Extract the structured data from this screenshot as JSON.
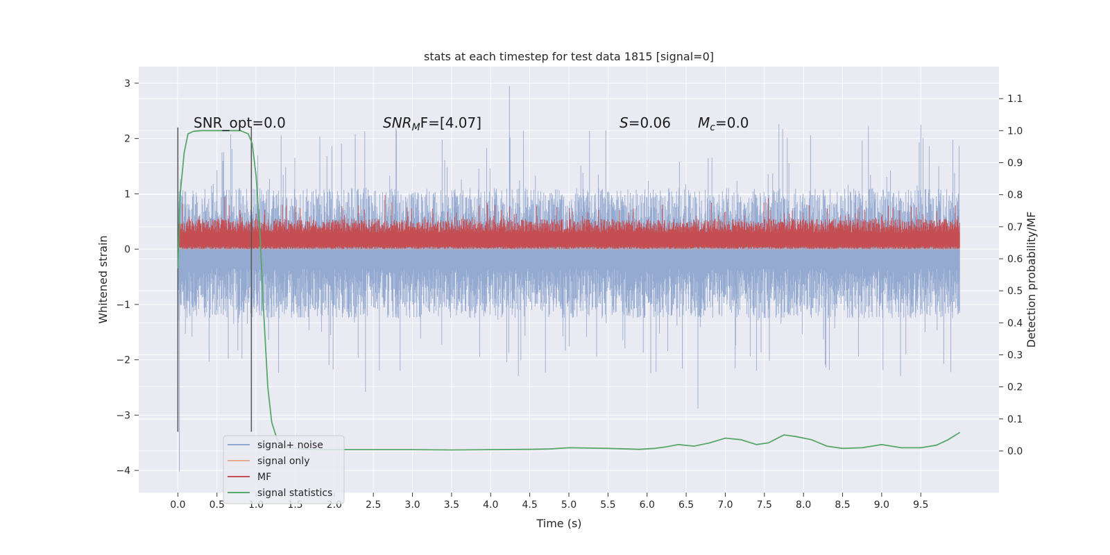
{
  "chart_data": {
    "type": "line",
    "title": "stats at each timestep for test data 1815 [signal=0]",
    "xlabel": "Time (s)",
    "ylabel": "Whitened strain",
    "ylabel_right": "Detection probability/MF",
    "xlim": [
      -0.5,
      10.5
    ],
    "ylim": [
      -4.4,
      3.3
    ],
    "ylim_right": [
      -0.13,
      1.2
    ],
    "x_ticks": [
      0.0,
      0.5,
      1.0,
      1.5,
      2.0,
      2.5,
      3.0,
      3.5,
      4.0,
      4.5,
      5.0,
      5.5,
      6.0,
      6.5,
      7.0,
      7.5,
      8.0,
      8.5,
      9.0,
      9.5
    ],
    "x_tick_labels": [
      "0.0",
      "0.5",
      "1.0",
      "1.5",
      "2.0",
      "2.5",
      "3.0",
      "3.5",
      "4.0",
      "4.5",
      "5.0",
      "5.5",
      "6.0",
      "6.5",
      "7.0",
      "7.5",
      "8.0",
      "8.5",
      "9.0",
      "9.5"
    ],
    "y_ticks": [
      3,
      2,
      1,
      0,
      -1,
      -2,
      -3,
      -4
    ],
    "y_tick_labels": [
      "3",
      "2",
      "1",
      "0",
      "−1",
      "−2",
      "−3",
      "−4"
    ],
    "y_right_ticks": [
      1.1,
      1.0,
      0.9,
      0.8,
      0.7,
      0.6,
      0.5,
      0.4,
      0.3,
      0.2,
      0.1,
      0.0
    ],
    "y_right_tick_labels": [
      "1.1",
      "1.0",
      "0.9",
      "0.8",
      "0.7",
      "0.6",
      "0.5",
      "0.4",
      "0.3",
      "0.2",
      "0.1",
      "0.0"
    ],
    "grid": true,
    "legend_position": "lower-left",
    "annotations": {
      "snr_opt": "SNR_opt=0.0",
      "snr_mf_prefix": "SNR",
      "snr_mf_sub": "M",
      "snr_mf_suffix": "F=[4.07]",
      "s_prefix": "S",
      "s_suffix": "=0.06",
      "mc_prefix": "M",
      "mc_sub": "c",
      "mc_suffix": "=0.0"
    },
    "vlines_x": [
      0.0,
      0.94
    ],
    "series": [
      {
        "name": "signal+ noise",
        "color": "#8fa6cf",
        "style": "dense-noise",
        "x_range": [
          0.0,
          10.0
        ],
        "typical_range": [
          -1.25,
          1.1
        ],
        "peak_examples": [
          {
            "x": 0.02,
            "y": -4.02
          },
          {
            "x": 4.24,
            "y": 2.95
          },
          {
            "x": 9.5,
            "y": 2.25
          },
          {
            "x": 6.65,
            "y": -2.88
          },
          {
            "x": 2.4,
            "y": -2.58
          }
        ]
      },
      {
        "name": "signal only",
        "color": "#e8a98c",
        "values_constant": 0.0
      },
      {
        "name": "MF",
        "color": "#c44e52",
        "style": "dense-noise",
        "x_range": [
          0.0,
          10.0
        ],
        "typical_range": [
          0.0,
          0.55
        ],
        "peak_examples": [
          {
            "x": 2.65,
            "y": 0.98
          },
          {
            "x": 0.6,
            "y": 0.95
          },
          {
            "x": 7.55,
            "y": 0.92
          }
        ]
      },
      {
        "name": "signal statistics",
        "color": "#55a868",
        "axis": "right",
        "x": [
          0.0,
          0.03,
          0.08,
          0.13,
          0.2,
          0.3,
          0.4,
          0.5,
          0.6,
          0.7,
          0.8,
          0.9,
          0.95,
          1.0,
          1.05,
          1.1,
          1.15,
          1.2,
          1.27,
          1.35,
          1.45,
          1.6,
          1.8,
          2.0,
          2.5,
          3.0,
          3.5,
          4.0,
          4.5,
          4.75,
          5.0,
          5.5,
          5.9,
          6.1,
          6.25,
          6.4,
          6.6,
          6.8,
          7.0,
          7.2,
          7.4,
          7.55,
          7.75,
          7.9,
          8.1,
          8.3,
          8.5,
          8.75,
          9.0,
          9.25,
          9.5,
          9.7,
          9.85,
          10.0
        ],
        "y": [
          0.57,
          0.8,
          0.93,
          0.99,
          0.998,
          1.0,
          1.0,
          1.0,
          1.0,
          1.0,
          1.0,
          0.99,
          0.96,
          0.86,
          0.68,
          0.42,
          0.2,
          0.09,
          0.035,
          0.017,
          0.01,
          0.006,
          0.004,
          0.004,
          0.004,
          0.004,
          0.003,
          0.004,
          0.005,
          0.006,
          0.01,
          0.008,
          0.005,
          0.008,
          0.013,
          0.02,
          0.015,
          0.025,
          0.04,
          0.035,
          0.02,
          0.025,
          0.05,
          0.045,
          0.035,
          0.015,
          0.008,
          0.01,
          0.02,
          0.01,
          0.01,
          0.018,
          0.035,
          0.058
        ]
      }
    ]
  }
}
